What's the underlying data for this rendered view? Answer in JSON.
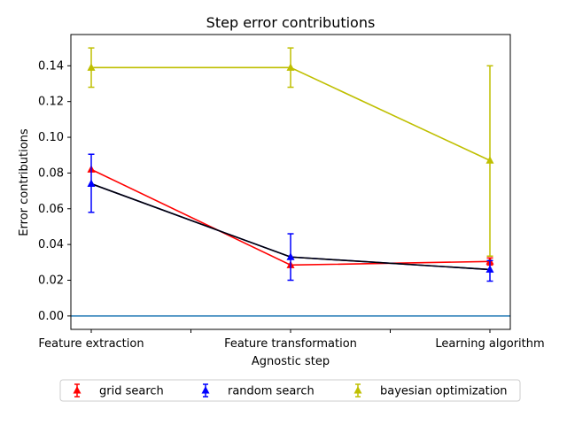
{
  "chart_data": {
    "type": "line",
    "title": "Step error contributions",
    "xlabel": "Agnostic step",
    "ylabel": "Error contributions",
    "categories": [
      "Feature extraction",
      "Feature transformation",
      "Learning algorithm"
    ],
    "ylim": [
      -0.0075,
      0.1575
    ],
    "yticks": [
      "0.00",
      "0.02",
      "0.04",
      "0.06",
      "0.08",
      "0.10",
      "0.12",
      "0.14"
    ],
    "ytick_values": [
      0.0,
      0.02,
      0.04,
      0.06,
      0.08,
      0.1,
      0.12,
      0.14
    ],
    "grid": false,
    "legend_position": "bottom",
    "series": [
      {
        "name": "grid search",
        "color": "#ff0000",
        "values": [
          0.082,
          0.0285,
          0.0305
        ],
        "err_low": [
          0.082,
          0.0285,
          0.0285
        ],
        "err_high": [
          0.082,
          0.0285,
          0.0325
        ]
      },
      {
        "name": "random search",
        "color": "#0000ff",
        "values": [
          0.074,
          0.033,
          0.026
        ],
        "err_low": [
          0.058,
          0.02,
          0.0195
        ],
        "err_high": [
          0.0905,
          0.046,
          0.031
        ]
      },
      {
        "name": "bayesian optimization",
        "color": "#bfbf00",
        "values": [
          0.139,
          0.139,
          0.087
        ],
        "err_low": [
          0.128,
          0.128,
          0.0335
        ],
        "err_high": [
          0.15,
          0.15,
          0.14
        ]
      }
    ],
    "mean_line": {
      "color": "#000000",
      "values": [
        0.074,
        0.033,
        0.026
      ]
    },
    "reference_line": {
      "y": 0.0,
      "color": "#1f77b4"
    }
  }
}
